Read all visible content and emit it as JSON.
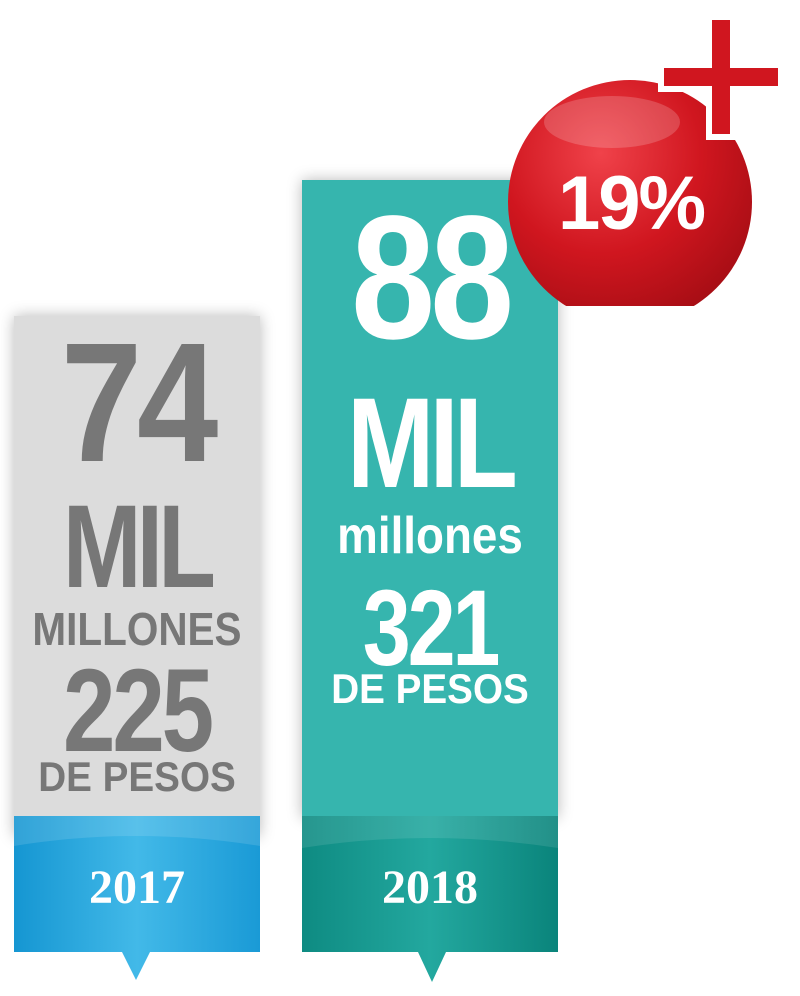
{
  "colors": {
    "gray_panel": "#dcdcdc",
    "gray_text": "#777777",
    "teal_panel": "#36b5ae",
    "teal_band": "#13958c",
    "blue_band": "#2aa9df",
    "red_badge": "#d0161f",
    "white": "#ffffff"
  },
  "col_2017": {
    "number": "74",
    "mil": "MIL",
    "millones": "MILLONES",
    "remainder": "225",
    "unit": "DE PESOS",
    "year": "2017"
  },
  "col_2018": {
    "number": "88",
    "mil": "MIL",
    "millones": "millones",
    "remainder": "321",
    "unit": "DE PESOS",
    "year": "2018"
  },
  "badge": {
    "plus_icon": "plus-icon",
    "text": "19%"
  }
}
